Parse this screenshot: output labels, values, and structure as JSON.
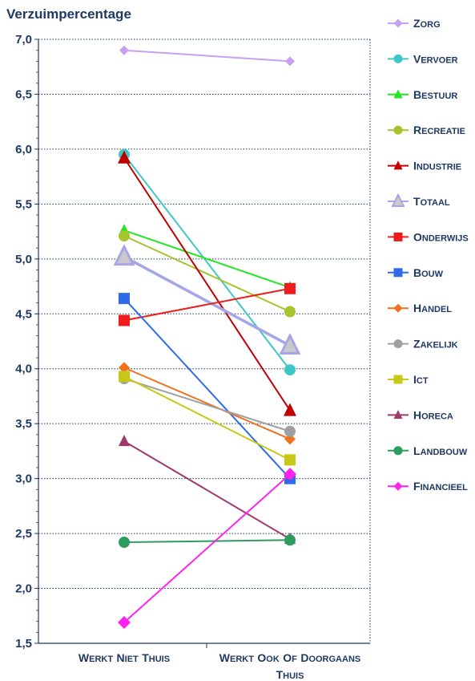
{
  "chart_data": {
    "type": "line",
    "ylabel": "Verzuimpercentage",
    "ylim": [
      1.5,
      7.0
    ],
    "yticks": [
      "1,5",
      "2,0",
      "2,5",
      "3,0",
      "3,5",
      "4,0",
      "4,5",
      "5,0",
      "5,5",
      "6,0",
      "6,5",
      "7,0"
    ],
    "categories": [
      "Werkt niet thuis",
      "Werkt ook of doorgaans thuis"
    ],
    "grid": "horizontal dotted",
    "legend_position": "right",
    "series": [
      {
        "name": "Zorg",
        "values": [
          6.9,
          6.8
        ],
        "color": "#c9a0f0",
        "marker": "diamond",
        "size": 6
      },
      {
        "name": "Vervoer",
        "values": [
          5.95,
          3.99
        ],
        "color": "#3fc6c6",
        "marker": "circle",
        "size": 7
      },
      {
        "name": "Bestuur",
        "values": [
          5.26,
          4.74
        ],
        "color": "#22e622",
        "marker": "triangle",
        "size": 7
      },
      {
        "name": "Recreatie",
        "values": [
          5.21,
          4.52
        ],
        "color": "#a6c52c",
        "marker": "circle",
        "size": 7
      },
      {
        "name": "Industrie",
        "values": [
          5.92,
          3.62
        ],
        "color": "#c00000",
        "marker": "triangle",
        "size": 8
      },
      {
        "name": "Totaal",
        "values": [
          5.02,
          4.21
        ],
        "color": "#a5a5e8",
        "marker": "triangle",
        "size": 11
      },
      {
        "name": "Onderwijs",
        "values": [
          4.44,
          4.73
        ],
        "color": "#ee1c1c",
        "marker": "square",
        "size": 7
      },
      {
        "name": "Bouw",
        "values": [
          4.64,
          3.0
        ],
        "color": "#2f6be8",
        "marker": "square",
        "size": 7
      },
      {
        "name": "Handel",
        "values": [
          4.01,
          3.36
        ],
        "color": "#f07020",
        "marker": "diamond",
        "size": 7
      },
      {
        "name": "Zakelijk",
        "values": [
          3.91,
          3.43
        ],
        "color": "#a0a0a0",
        "marker": "circle",
        "size": 7
      },
      {
        "name": "ICT",
        "values": [
          3.93,
          3.17
        ],
        "color": "#c8c818",
        "marker": "square",
        "size": 7
      },
      {
        "name": "Horeca",
        "values": [
          3.34,
          2.45
        ],
        "color": "#9e3a6b",
        "marker": "triangle",
        "size": 7
      },
      {
        "name": "Landbouw",
        "values": [
          2.42,
          2.44
        ],
        "color": "#2e9b60",
        "marker": "circle",
        "size": 7
      },
      {
        "name": "Financieel",
        "values": [
          1.69,
          3.04
        ],
        "color": "#ff22ee",
        "marker": "diamond",
        "size": 8
      }
    ]
  }
}
